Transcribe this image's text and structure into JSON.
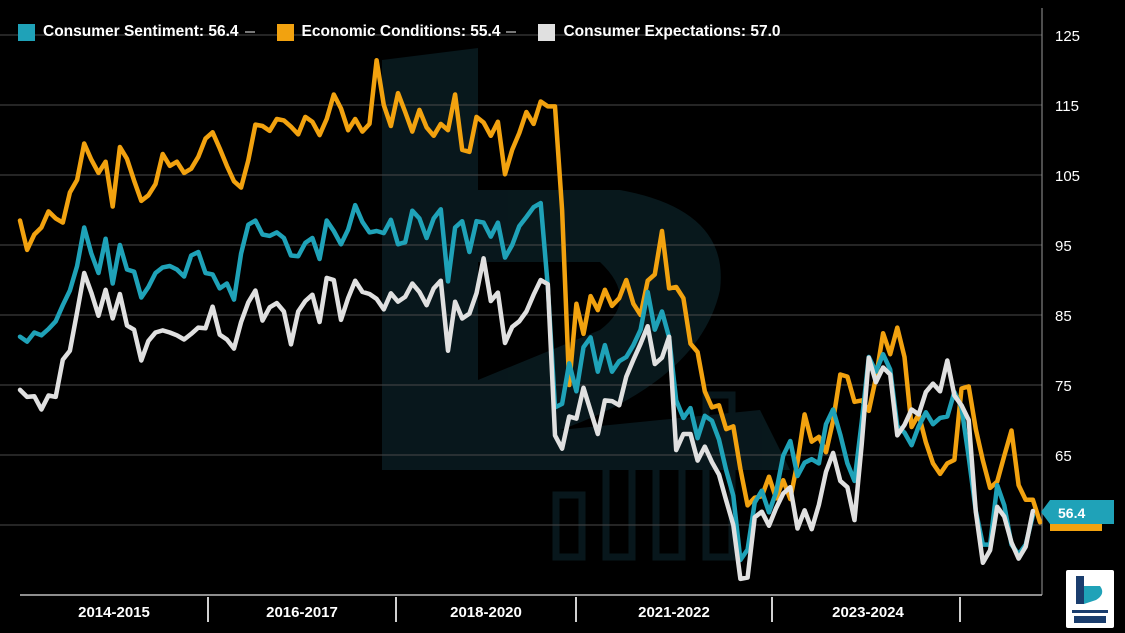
{
  "legend": {
    "items": [
      {
        "label": "Consumer Sentiment: 56.4",
        "color": "#1fa2b8"
      },
      {
        "label": "Economic Conditions: 55.4",
        "color": "#f2a20f"
      },
      {
        "label": "Consumer Expectations: 57.0",
        "color": "#e0e0e0"
      }
    ]
  },
  "end_badge": {
    "value": "56.4",
    "color": "#1fa2b8"
  },
  "chart_data": {
    "type": "line",
    "title": "",
    "xlabel": "",
    "ylabel": "",
    "ylim": [
      45,
      127
    ],
    "yticks": [
      125,
      115,
      105,
      95,
      85,
      75,
      65
    ],
    "period_labels": [
      "2014-2015",
      "2016-2017",
      "2018-2020",
      "2021-2022",
      "2023-2024"
    ],
    "x_range": [
      0,
      140
    ],
    "series": [
      {
        "name": "Economic Conditions",
        "color": "#f2a20f",
        "latest": 55.4,
        "values": [
          98.5,
          94.3,
          96.5,
          97.5,
          99.8,
          98.8,
          98.2,
          102.5,
          104.3,
          109.5,
          107.2,
          105.3,
          106.9,
          100.5,
          109.0,
          107.3,
          104.2,
          101.3,
          102.1,
          103.7,
          108.0,
          106.3,
          106.9,
          105.3,
          105.9,
          107.6,
          110.2,
          111.1,
          108.8,
          106.3,
          104.1,
          103.2,
          107.1,
          112.2,
          112.0,
          111.3,
          113.0,
          112.8,
          111.9,
          110.8,
          113.3,
          112.6,
          110.7,
          113.0,
          116.5,
          114.5,
          111.4,
          113.0,
          111.2,
          112.3,
          121.4,
          115.0,
          112.0,
          116.7,
          114.0,
          111.2,
          114.3,
          111.8,
          110.6,
          112.3,
          111.4,
          116.5,
          108.6,
          108.3,
          113.3,
          112.5,
          110.6,
          112.6,
          105.1,
          108.6,
          111.0,
          114.0,
          112.3,
          115.5,
          114.8,
          114.8,
          100.0,
          75.0,
          86.6,
          82.3,
          87.7,
          85.7,
          88.6,
          86.3,
          87.4,
          90.0,
          86.6,
          85.0,
          89.9,
          90.8,
          97.0,
          88.8,
          89.0,
          87.4,
          80.9,
          79.7,
          74.1,
          71.8,
          72.1,
          68.7,
          69.1,
          63.0,
          57.8,
          58.9,
          59.1,
          61.9,
          58.8,
          61.4,
          58.7,
          64.0,
          70.8,
          66.9,
          67.6,
          65.4,
          69.9,
          76.5,
          76.2,
          72.6,
          72.8,
          71.3,
          76.0,
          82.4,
          79.4,
          83.2,
          79.0,
          69.0,
          70.8,
          66.8,
          63.8,
          62.3,
          63.8,
          64.3,
          74.5,
          74.8,
          68.7,
          64.2,
          60.3,
          61.2,
          64.9,
          68.5,
          60.7,
          58.6,
          58.6,
          55.4
        ]
      },
      {
        "name": "Consumer Sentiment",
        "color": "#1fa2b8",
        "latest": 56.4,
        "values": [
          81.9,
          81.2,
          82.5,
          82.1,
          83.0,
          84.1,
          86.4,
          88.5,
          92.0,
          97.5,
          93.8,
          91.0,
          95.9,
          89.5,
          95.0,
          91.5,
          91.2,
          87.5,
          89.0,
          91.0,
          91.8,
          92.0,
          91.5,
          90.5,
          93.5,
          94.0,
          91.0,
          90.8,
          88.8,
          89.5,
          87.2,
          93.8,
          97.9,
          98.5,
          96.5,
          96.3,
          96.8,
          96.0,
          93.5,
          93.4,
          95.3,
          96.0,
          93.0,
          98.5,
          97.0,
          95.1,
          97.2,
          100.7,
          98.3,
          96.8,
          97.0,
          96.7,
          98.6,
          95.1,
          95.4,
          99.9,
          98.8,
          96.0,
          98.8,
          100.1,
          89.8,
          97.5,
          98.4,
          94.0,
          98.4,
          98.2,
          96.2,
          98.2,
          93.2,
          95.0,
          97.7,
          99.0,
          100.4,
          101.0,
          89.1,
          71.8,
          72.3,
          78.1,
          74.1,
          80.4,
          81.8,
          76.9,
          80.7,
          76.9,
          78.4,
          79.0,
          80.7,
          82.9,
          88.3,
          82.9,
          85.5,
          81.8,
          72.8,
          70.3,
          71.7,
          67.4,
          70.6,
          69.9,
          67.2,
          62.8,
          59.2,
          50.0,
          51.5,
          58.2,
          59.9,
          56.8,
          59.7,
          64.9,
          67.0,
          62.0,
          63.9,
          64.4,
          63.8,
          69.4,
          71.5,
          67.9,
          63.8,
          61.3,
          69.7,
          79.0,
          76.9,
          79.4,
          77.2,
          69.1,
          68.2,
          66.4,
          69.1,
          71.1,
          69.4,
          70.3,
          70.5,
          74.0,
          71.8,
          64.7,
          57.0,
          52.2,
          52.2,
          60.7,
          57.8,
          52.2,
          50.8,
          52.2,
          56.4
        ]
      },
      {
        "name": "Consumer Expectations",
        "color": "#e0e0e0",
        "latest": 57.0,
        "values": [
          74.3,
          73.3,
          73.4,
          71.5,
          73.5,
          73.3,
          78.6,
          79.9,
          85.4,
          91.0,
          88.2,
          84.9,
          88.6,
          84.5,
          88.0,
          83.5,
          82.9,
          78.5,
          81.3,
          82.5,
          82.8,
          82.5,
          82.1,
          81.5,
          82.3,
          83.2,
          83.1,
          86.2,
          82.2,
          81.5,
          80.2,
          84.0,
          86.8,
          88.5,
          84.2,
          86.1,
          86.7,
          85.5,
          80.8,
          85.5,
          87.0,
          87.9,
          84.0,
          90.3,
          90.0,
          84.3,
          87.4,
          89.9,
          88.3,
          88.0,
          87.3,
          85.8,
          88.1,
          86.9,
          87.6,
          89.5,
          88.3,
          86.4,
          88.8,
          89.9,
          79.9,
          86.9,
          84.5,
          85.2,
          88.1,
          93.1,
          87.0,
          88.2,
          81.0,
          83.3,
          84.1,
          85.5,
          87.9,
          90.0,
          89.4,
          67.8,
          65.9,
          70.5,
          70.2,
          74.6,
          71.3,
          68.0,
          72.8,
          72.7,
          72.1,
          76.2,
          78.6,
          80.9,
          83.4,
          78.0,
          78.9,
          81.9,
          65.7,
          68.0,
          68.0,
          64.2,
          66.2,
          64.0,
          62.2,
          58.5,
          55.0,
          47.3,
          47.5,
          56.1,
          56.9,
          54.9,
          57.4,
          59.5,
          60.4,
          54.5,
          57.1,
          54.4,
          57.9,
          62.6,
          65.3,
          61.3,
          60.4,
          55.7,
          66.5,
          78.9,
          75.4,
          77.5,
          76.5,
          67.8,
          69.3,
          71.5,
          70.8,
          74.0,
          75.2,
          74.1,
          78.5,
          73.5,
          72.1,
          70.0,
          56.9,
          49.6,
          51.4,
          57.6,
          56.2,
          52.5,
          50.2,
          51.9,
          57.0
        ]
      }
    ]
  }
}
